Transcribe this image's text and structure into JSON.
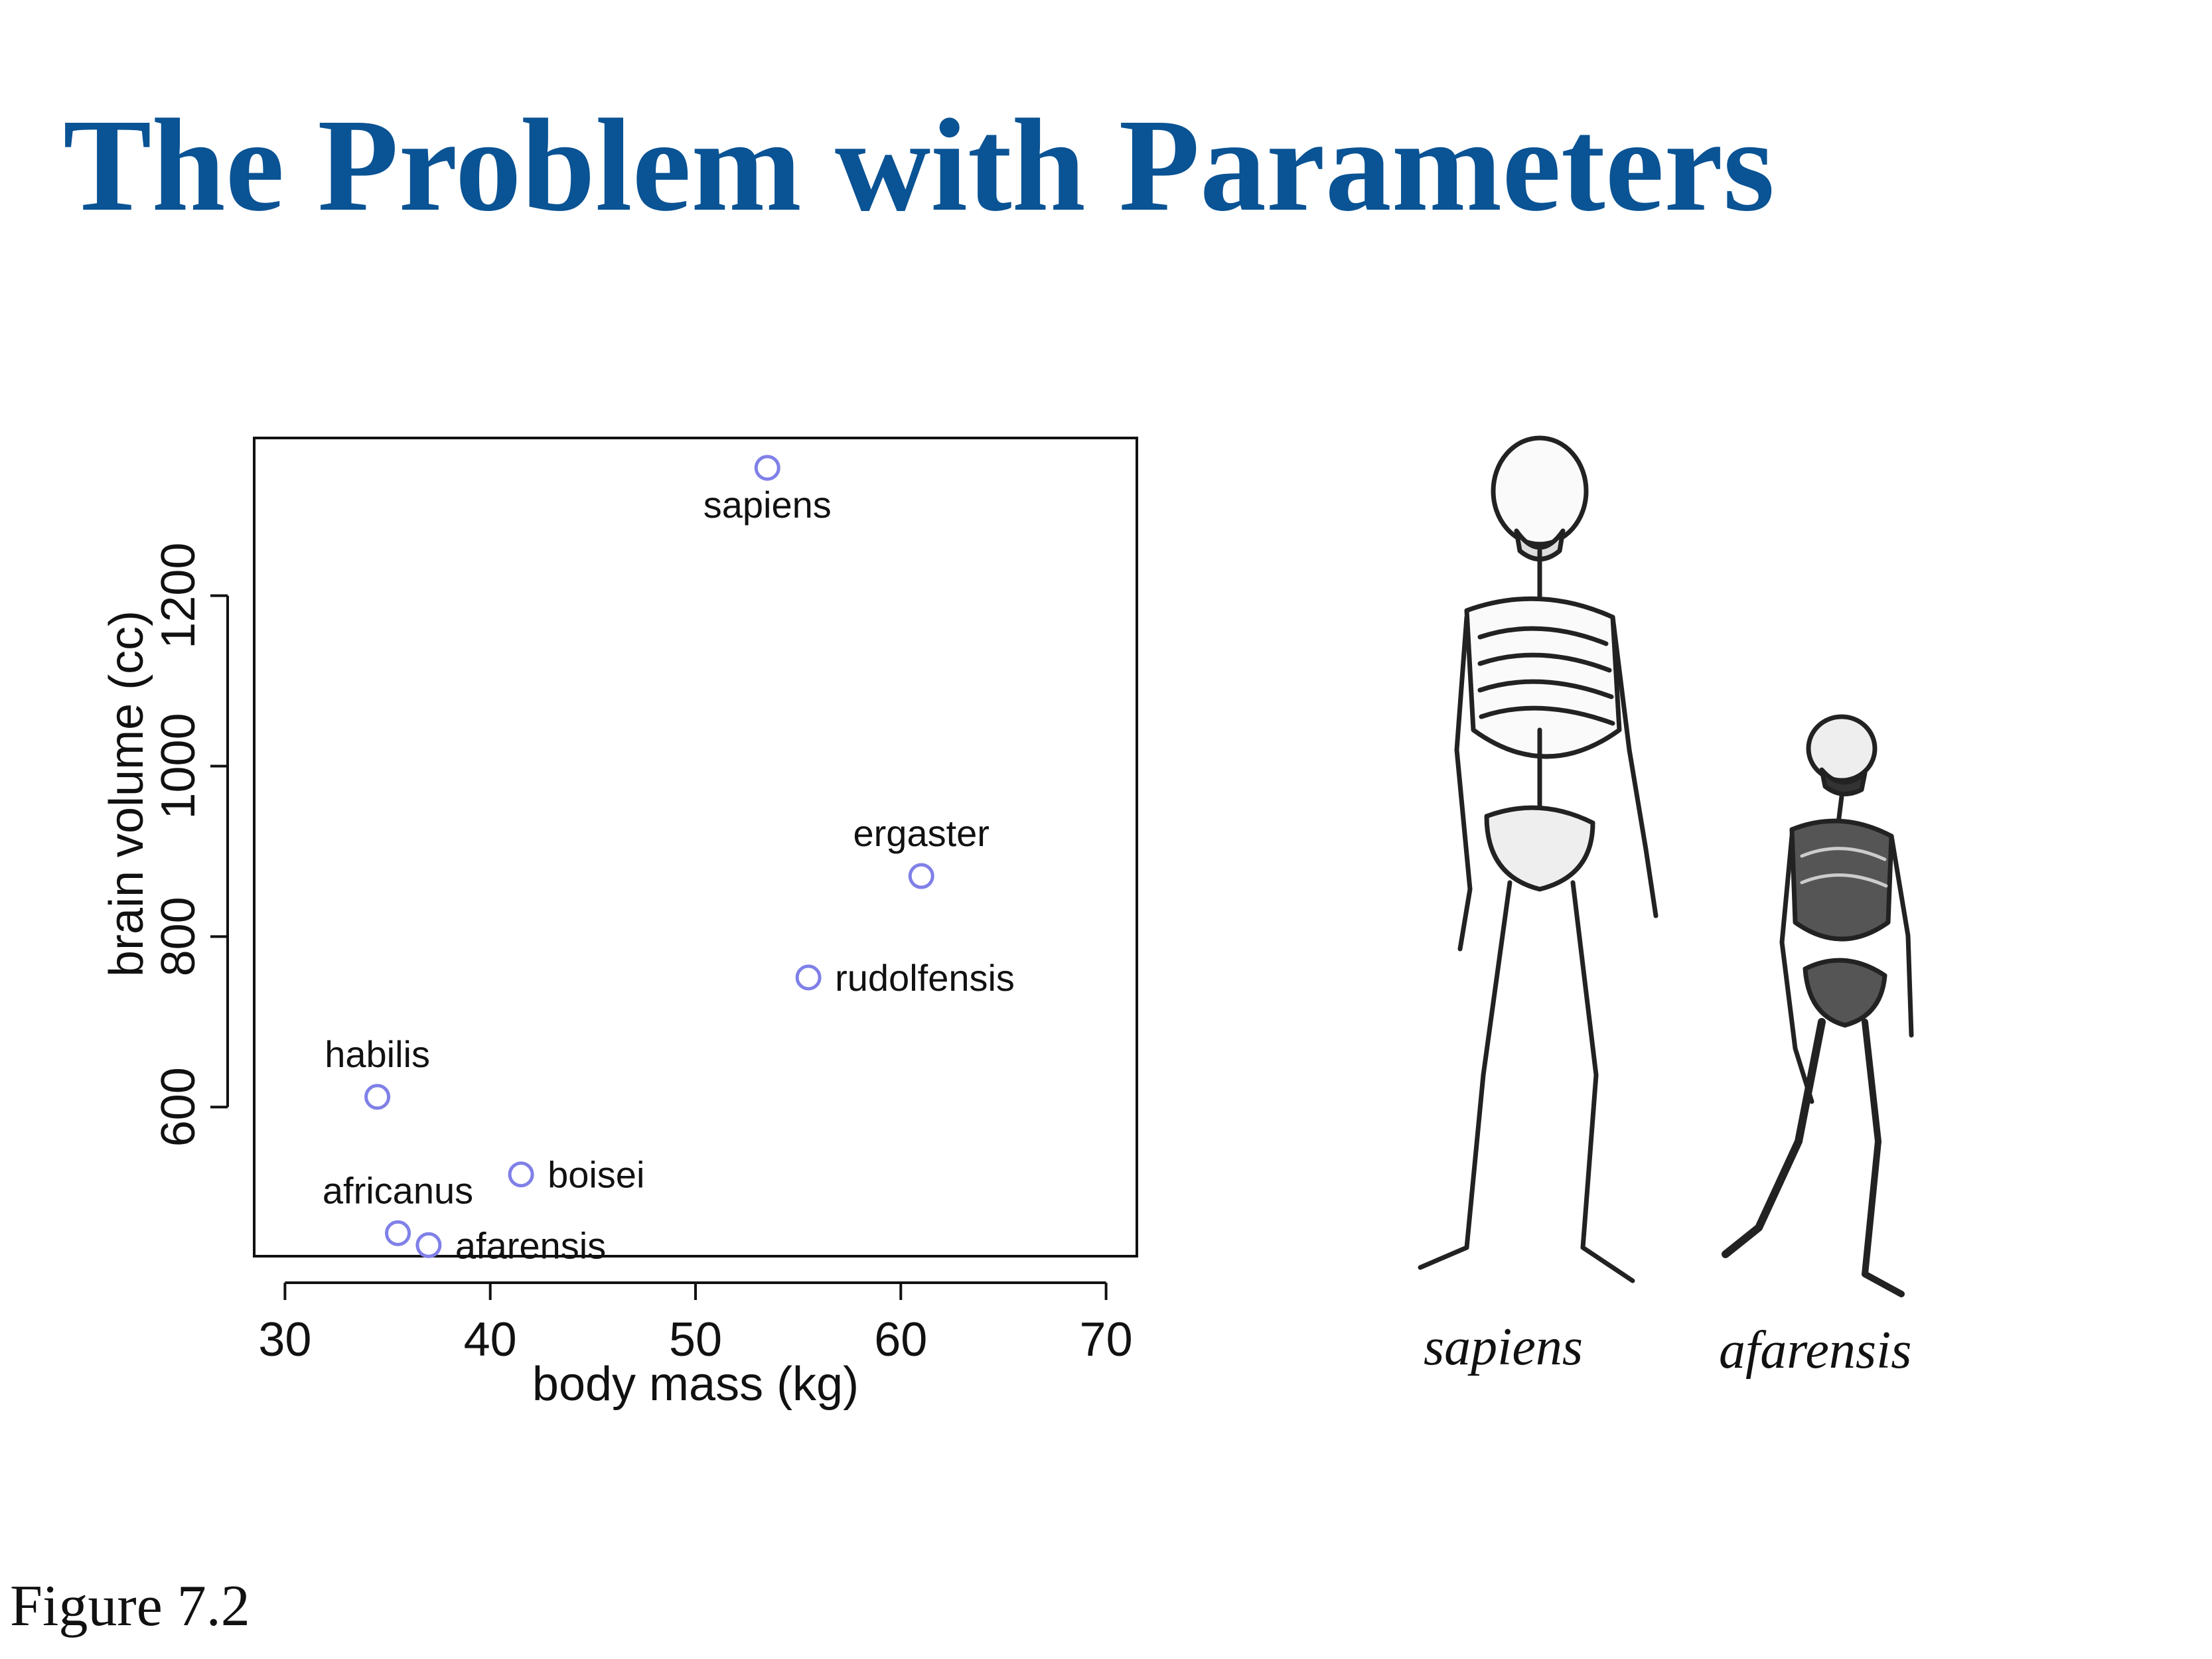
{
  "slide": {
    "title": "The Problem with Parameters",
    "figure_label": "Figure 7.2",
    "title_color": "#0a5394"
  },
  "chart_data": {
    "type": "scatter",
    "xlabel": "body mass (kg)",
    "ylabel": "brain volume (cc)",
    "xlim": [
      28.5,
      71.5
    ],
    "ylim": [
      425,
      1385
    ],
    "xticks": [
      30,
      40,
      50,
      60,
      70
    ],
    "yticks": [
      600,
      800,
      1000,
      1200
    ],
    "point_color": "#8080e8",
    "grid": false,
    "points": [
      {
        "label": "afarensis",
        "x": 37.0,
        "y": 438,
        "label_pos": "right"
      },
      {
        "label": "africanus",
        "x": 35.5,
        "y": 452,
        "label_pos": "top"
      },
      {
        "label": "habilis",
        "x": 34.5,
        "y": 612,
        "label_pos": "top"
      },
      {
        "label": "boisei",
        "x": 41.5,
        "y": 521,
        "label_pos": "right"
      },
      {
        "label": "rudolfensis",
        "x": 55.5,
        "y": 752,
        "label_pos": "right"
      },
      {
        "label": "ergaster",
        "x": 61.0,
        "y": 871,
        "label_pos": "top"
      },
      {
        "label": "sapiens",
        "x": 53.5,
        "y": 1350,
        "label_pos": "bottom"
      }
    ]
  },
  "skeletons": [
    {
      "name": "sapiens-skeleton",
      "caption": "sapiens"
    },
    {
      "name": "afarensis-skeleton",
      "caption": "afarensis"
    }
  ]
}
